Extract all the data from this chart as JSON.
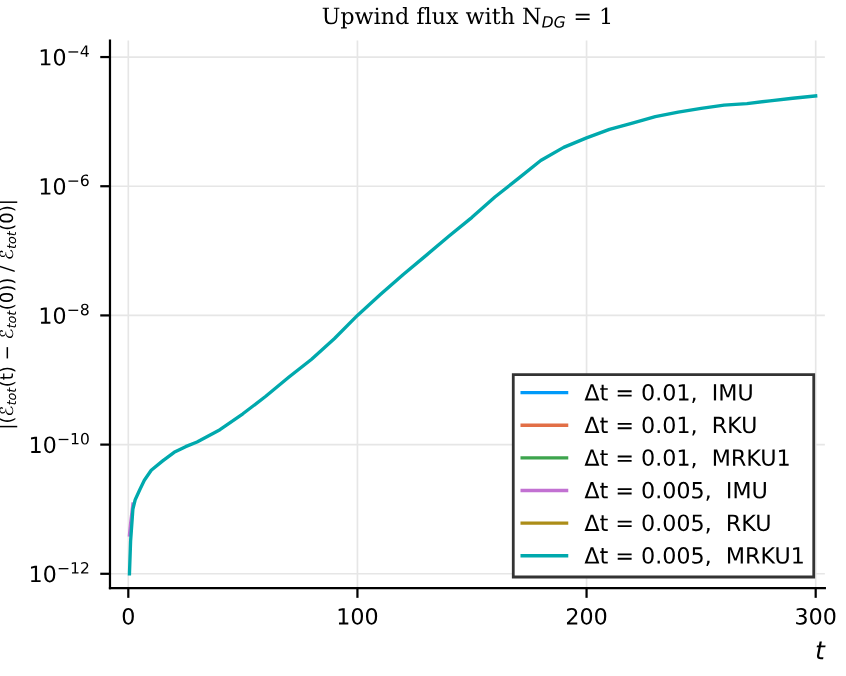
{
  "chart_data": {
    "type": "line",
    "title": "Upwind flux with N$_{DG}$ = 1",
    "xlabel": "t",
    "ylabel": "|(ℰ$_{tot}$(t) − ℰ$_{tot}$(0)) / ℰ$_{tot}$(0)|",
    "x": [
      0.5,
      1,
      2,
      3,
      5,
      7,
      10,
      15,
      20,
      25,
      30,
      40,
      50,
      60,
      70,
      80,
      90,
      100,
      110,
      120,
      130,
      140,
      150,
      160,
      170,
      180,
      190,
      200,
      210,
      220,
      230,
      240,
      250,
      260,
      270,
      280,
      290,
      300
    ],
    "series": [
      {
        "name": "Δt = 0.01,  IMU",
        "color": "#009af9",
        "values": [
          null,
          null,
          null,
          null,
          null,
          null,
          null,
          null,
          null,
          null,
          null,
          null,
          null,
          null,
          null,
          null,
          null,
          null,
          null,
          null,
          null,
          null,
          null,
          null,
          null,
          null,
          null,
          null,
          null,
          null,
          null,
          null,
          null,
          null,
          null,
          null,
          null,
          null
        ]
      },
      {
        "name": "Δt = 0.01,  RKU",
        "color": "#e26f46",
        "values": [
          null,
          null,
          null,
          null,
          null,
          null,
          null,
          null,
          null,
          null,
          null,
          null,
          null,
          null,
          null,
          null,
          null,
          null,
          null,
          null,
          null,
          null,
          null,
          null,
          null,
          null,
          null,
          null,
          null,
          null,
          null,
          null,
          null,
          null,
          null,
          null,
          null,
          null
        ]
      },
      {
        "name": "Δt = 0.01,  MRKU1",
        "color": "#3da44d",
        "values": [
          null,
          null,
          null,
          null,
          null,
          null,
          null,
          null,
          null,
          null,
          null,
          null,
          null,
          null,
          null,
          null,
          null,
          null,
          null,
          null,
          null,
          null,
          null,
          null,
          null,
          null,
          null,
          null,
          null,
          null,
          null,
          null,
          null,
          null,
          null,
          null,
          null,
          null
        ]
      },
      {
        "name": "Δt = 0.005,  IMU",
        "color": "#c271d2",
        "values": [
          4e-12,
          6e-12,
          1.2e-11,
          null,
          null,
          null,
          null,
          null,
          null,
          null,
          null,
          null,
          null,
          null,
          null,
          null,
          null,
          null,
          null,
          null,
          null,
          null,
          null,
          null,
          null,
          null,
          null,
          null,
          null,
          null,
          null,
          null,
          null,
          null,
          null,
          null,
          null,
          null
        ]
      },
      {
        "name": "Δt = 0.005,  RKU",
        "color": "#ac8d18",
        "values": [
          null,
          null,
          null,
          null,
          null,
          null,
          null,
          null,
          null,
          null,
          null,
          null,
          null,
          null,
          null,
          null,
          null,
          null,
          null,
          null,
          null,
          null,
          null,
          null,
          null,
          null,
          null,
          null,
          null,
          null,
          null,
          null,
          null,
          null,
          null,
          null,
          null,
          null
        ]
      },
      {
        "name": "Δt = 0.005,  MRKU1",
        "color": "#00a9ad",
        "values": [
          1e-12,
          3.2e-12,
          1e-11,
          1.4e-11,
          2e-11,
          2.8e-11,
          4e-11,
          5.6e-11,
          7.6e-11,
          9.3e-11,
          1.1e-10,
          1.7e-10,
          3e-10,
          5.6e-10,
          1.1e-09,
          2.1e-09,
          4.4e-09,
          1e-08,
          2.1e-08,
          4.3e-08,
          8.5e-08,
          1.7e-07,
          3.3e-07,
          6.8e-07,
          1.3e-06,
          2.5e-06,
          4e-06,
          5.6e-06,
          7.6e-06,
          9.5e-06,
          1.2e-05,
          1.4e-05,
          1.6e-05,
          1.8e-05,
          1.9e-05,
          2.1e-05,
          2.3e-05,
          2.5e-05
        ]
      }
    ],
    "log": "y",
    "xlim": [
      -8,
      304
    ],
    "ylim": [
      6e-13,
      0.00018
    ],
    "xticks": [
      0,
      100,
      200,
      300
    ],
    "yticks": [
      {
        "value": 1e-12,
        "label": "10$^{−12}$"
      },
      {
        "value": 1e-10,
        "label": "10$^{−10}$"
      },
      {
        "value": 1e-08,
        "label": "10$^{−8}$"
      },
      {
        "value": 1e-06,
        "label": "10$^{−6}$"
      },
      {
        "value": 0.0001,
        "label": "10$^{−4}$"
      }
    ],
    "grid": true,
    "legend": "bottom right",
    "line_style": "solid",
    "marker": "none"
  }
}
